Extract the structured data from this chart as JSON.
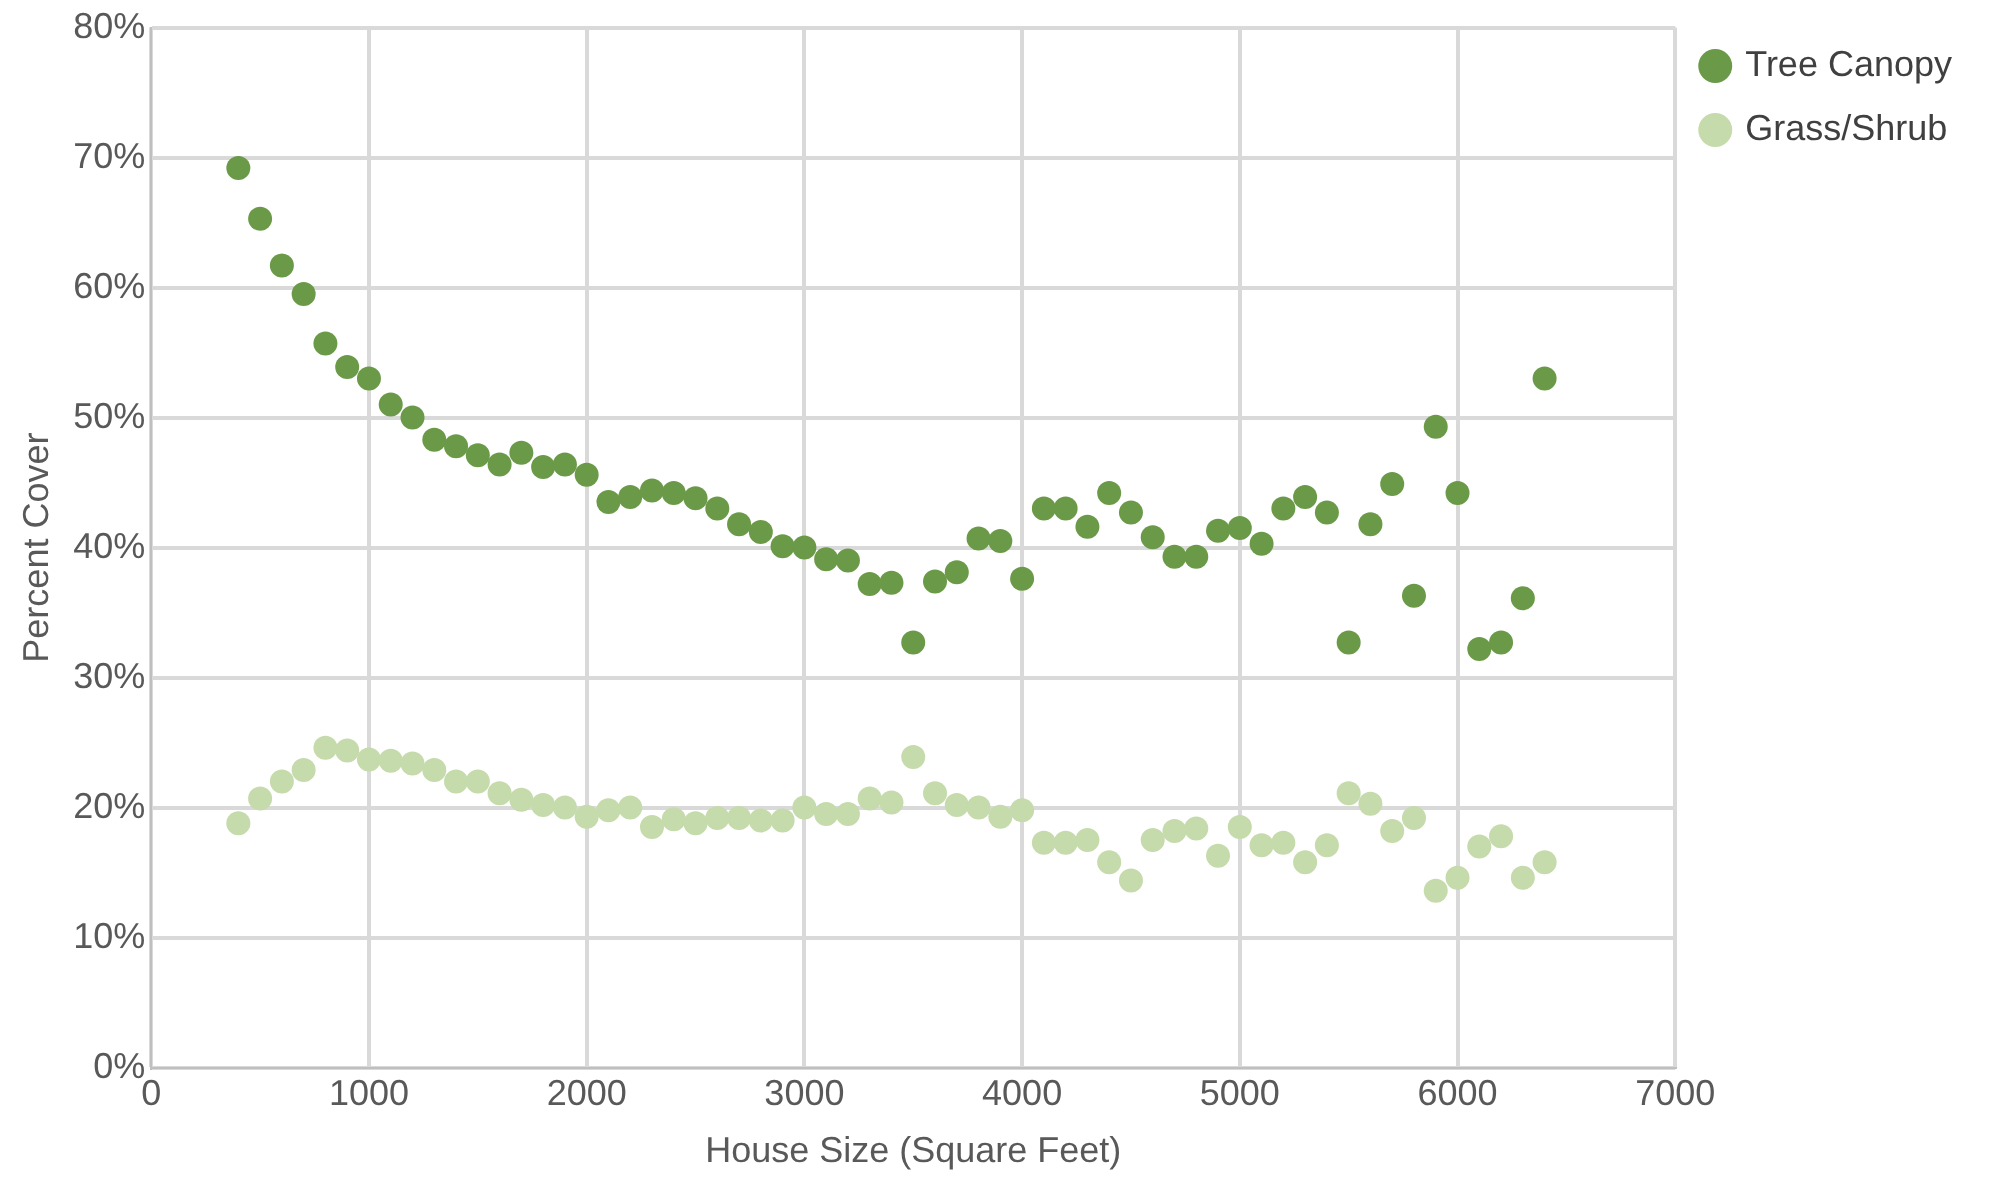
{
  "chart_data": {
    "type": "scatter",
    "xlabel": "House Size (Square Feet)",
    "ylabel": "Percent Cover",
    "x": [
      400,
      500,
      600,
      700,
      800,
      900,
      1000,
      1100,
      1200,
      1300,
      1400,
      1500,
      1600,
      1700,
      1800,
      1900,
      2000,
      2100,
      2200,
      2300,
      2400,
      2500,
      2600,
      2700,
      2800,
      2900,
      3000,
      3100,
      3200,
      3300,
      3400,
      3500,
      3600,
      3700,
      3800,
      3900,
      4000,
      4100,
      4200,
      4300,
      4400,
      4500,
      4600,
      4700,
      4800,
      4900,
      5000,
      5100,
      5200,
      5300,
      5400,
      5500,
      5600,
      5700,
      5800,
      5900,
      6000,
      6100,
      6200,
      6300,
      6400
    ],
    "series": [
      {
        "name": "Tree Canopy",
        "color": "#6a9a48",
        "values": [
          69.2,
          65.3,
          61.7,
          59.5,
          55.7,
          53.9,
          53.0,
          51.0,
          50.0,
          48.3,
          47.8,
          47.1,
          46.4,
          47.3,
          46.2,
          46.4,
          45.6,
          43.5,
          43.9,
          44.4,
          44.2,
          43.8,
          43.0,
          41.8,
          41.2,
          40.1,
          40.0,
          39.1,
          39.0,
          37.2,
          37.3,
          32.7,
          37.4,
          38.1,
          40.7,
          40.5,
          37.6,
          43.0,
          43.0,
          41.6,
          44.2,
          42.7,
          40.8,
          39.3,
          39.3,
          41.3,
          41.5,
          40.3,
          43.0,
          43.9,
          42.7,
          32.7,
          41.8,
          44.9,
          36.3,
          49.3,
          44.2,
          32.2,
          32.7,
          36.1,
          53.0
        ]
      },
      {
        "name": "Grass/Shrub",
        "color": "#c5dbab",
        "values": [
          18.8,
          20.7,
          22.0,
          22.9,
          24.6,
          24.4,
          23.7,
          23.6,
          23.4,
          22.9,
          22.0,
          22.0,
          21.1,
          20.6,
          20.2,
          20.0,
          19.3,
          19.8,
          20.0,
          18.5,
          19.1,
          18.8,
          19.2,
          19.2,
          19.0,
          19.0,
          20.0,
          19.5,
          19.5,
          20.7,
          20.4,
          23.9,
          21.1,
          20.2,
          20.0,
          19.3,
          19.8,
          17.3,
          17.3,
          17.5,
          15.8,
          14.4,
          17.5,
          18.2,
          18.4,
          16.3,
          18.5,
          17.1,
          17.3,
          15.8,
          17.1,
          21.1,
          20.3,
          18.2,
          19.2,
          13.6,
          14.6,
          17.0,
          17.8,
          14.6,
          15.8
        ]
      }
    ],
    "xlim": [
      0,
      7000
    ],
    "xticks": [
      0,
      1000,
      2000,
      3000,
      4000,
      5000,
      6000,
      7000
    ],
    "ylim": [
      0,
      80
    ],
    "yticks": [
      {
        "value": 0,
        "label": "0%"
      },
      {
        "value": 10,
        "label": "10%"
      },
      {
        "value": 20,
        "label": "20%"
      },
      {
        "value": 30,
        "label": "30%"
      },
      {
        "value": 40,
        "label": "40%"
      },
      {
        "value": 50,
        "label": "50%"
      },
      {
        "value": 60,
        "label": "60%"
      },
      {
        "value": 70,
        "label": "70%"
      },
      {
        "value": 80,
        "label": "80%"
      }
    ],
    "grid": true,
    "legend": "top right",
    "marker": "circle"
  }
}
